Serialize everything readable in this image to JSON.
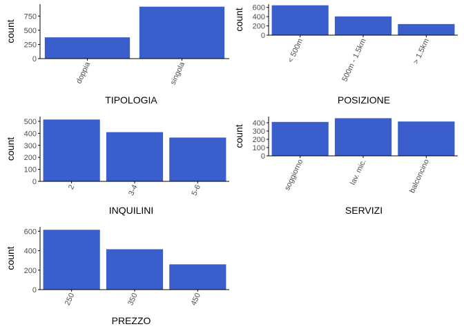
{
  "style": {
    "bar_color": "#3a5fcd",
    "axis_color": "#000000",
    "tick_color": "#4d4d4d",
    "background": "#ffffff"
  },
  "chart_data": [
    {
      "type": "bar",
      "xlabel": "TIPOLOGIA",
      "ylabel": "count",
      "categories": [
        "doppia",
        "singola"
      ],
      "values": [
        375,
        915
      ],
      "ylim": [
        0,
        960
      ],
      "yticks": [
        0,
        250,
        500,
        750
      ],
      "x_tick_rotation": -65,
      "grid": false
    },
    {
      "type": "bar",
      "xlabel": "POSIZIONE",
      "ylabel": "count",
      "categories": [
        "< 500m",
        "500m - 1.5km",
        "> 1.5km"
      ],
      "values": [
        645,
        405,
        240
      ],
      "ylim": [
        0,
        670
      ],
      "yticks": [
        0,
        200,
        400,
        600
      ],
      "x_tick_rotation": -65,
      "grid": false
    },
    {
      "type": "bar",
      "xlabel": "INQUILINI",
      "ylabel": "count",
      "categories": [
        "2",
        "3-4",
        "5-6"
      ],
      "values": [
        515,
        410,
        365
      ],
      "ylim": [
        0,
        540
      ],
      "yticks": [
        0,
        100,
        200,
        300,
        400,
        500
      ],
      "x_tick_rotation": -65,
      "grid": false
    },
    {
      "type": "bar",
      "xlabel": "SERVIZI",
      "ylabel": "count",
      "categories": [
        "soggiorno",
        "lav. mic.",
        "balconcino"
      ],
      "values": [
        410,
        455,
        415
      ],
      "ylim": [
        0,
        475
      ],
      "yticks": [
        0,
        100,
        200,
        300,
        400
      ],
      "x_tick_rotation": -65,
      "grid": false
    },
    {
      "type": "bar",
      "xlabel": "PREZZO",
      "ylabel": "count",
      "categories": [
        "250",
        "350",
        "450"
      ],
      "values": [
        615,
        415,
        260
      ],
      "ylim": [
        0,
        645
      ],
      "yticks": [
        0,
        200,
        400,
        600
      ],
      "x_tick_rotation": -65,
      "grid": false
    }
  ]
}
